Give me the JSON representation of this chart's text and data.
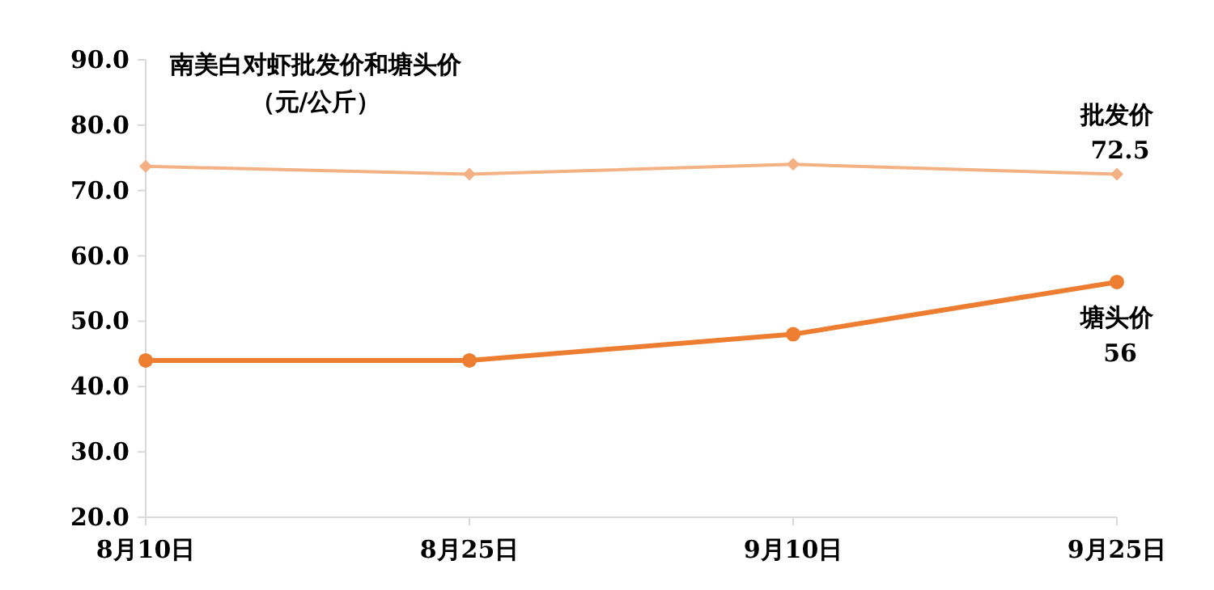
{
  "chart_data": {
    "type": "line",
    "title": "南美白对虾批发价和塘头价",
    "subtitle": "（元/公斤）",
    "categories": [
      "8月10日",
      "8月25日",
      "9月10日",
      "9月25日"
    ],
    "ylim": [
      20,
      90
    ],
    "yticks": [
      {
        "value": 20,
        "label": "20.0"
      },
      {
        "value": 30,
        "label": "30.0"
      },
      {
        "value": 40,
        "label": "40.0"
      },
      {
        "value": 50,
        "label": "50.0"
      },
      {
        "value": 60,
        "label": "60.0"
      },
      {
        "value": 70,
        "label": "70.0"
      },
      {
        "value": 80,
        "label": "80.0"
      },
      {
        "value": 90,
        "label": "90.0"
      }
    ],
    "series": [
      {
        "name": "批发价",
        "color": "#f4b183",
        "marker": "diamond",
        "values": [
          73.7,
          72.5,
          74.0,
          72.5
        ],
        "value_labels": [
          null,
          null,
          null,
          "72.5"
        ]
      },
      {
        "name": "塘头价",
        "color": "#ed7d31",
        "marker": "circle",
        "values": [
          44,
          44,
          48,
          56
        ],
        "value_labels": [
          null,
          null,
          null,
          "56"
        ]
      }
    ],
    "grid": false,
    "legend": false
  }
}
